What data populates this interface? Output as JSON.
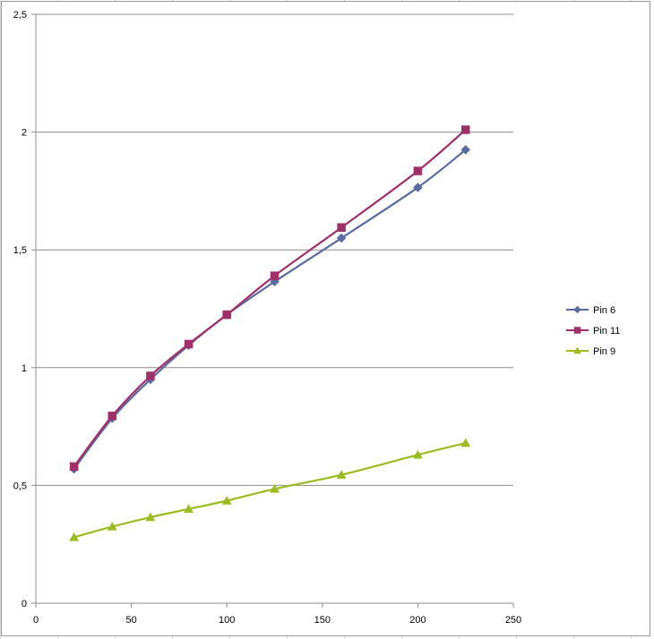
{
  "chart_data": {
    "type": "line",
    "title": "",
    "xlabel": "",
    "ylabel": "",
    "xlim": [
      0,
      250
    ],
    "ylim": [
      0,
      2.5
    ],
    "xticks": [
      0,
      50,
      100,
      150,
      200,
      250
    ],
    "yticks": [
      0,
      0.5,
      1,
      1.5,
      2,
      2.5
    ],
    "xtick_labels": [
      "0",
      "50",
      "100",
      "150",
      "200",
      "250"
    ],
    "ytick_labels": [
      "0",
      "0,5",
      "1",
      "1,5",
      "2",
      "2,5"
    ],
    "grid": "horizontal",
    "legend_position": "right",
    "x": [
      20,
      40,
      60,
      80,
      100,
      125,
      160,
      200,
      225
    ],
    "series": [
      {
        "name": "Pin 6",
        "color": "#5b6aa0",
        "marker": "diamond",
        "values": [
          0.57,
          0.785,
          0.95,
          1.095,
          1.225,
          1.365,
          1.55,
          1.765,
          1.925
        ]
      },
      {
        "name": "Pin 11",
        "color": "#a0306a",
        "marker": "square",
        "values": [
          0.58,
          0.795,
          0.965,
          1.1,
          1.225,
          1.39,
          1.595,
          1.835,
          2.01
        ]
      },
      {
        "name": "Pin 9",
        "color": "#9bbb20",
        "marker": "triangle",
        "values": [
          0.28,
          0.325,
          0.365,
          0.4,
          0.435,
          0.485,
          0.545,
          0.63,
          0.68
        ]
      }
    ]
  }
}
